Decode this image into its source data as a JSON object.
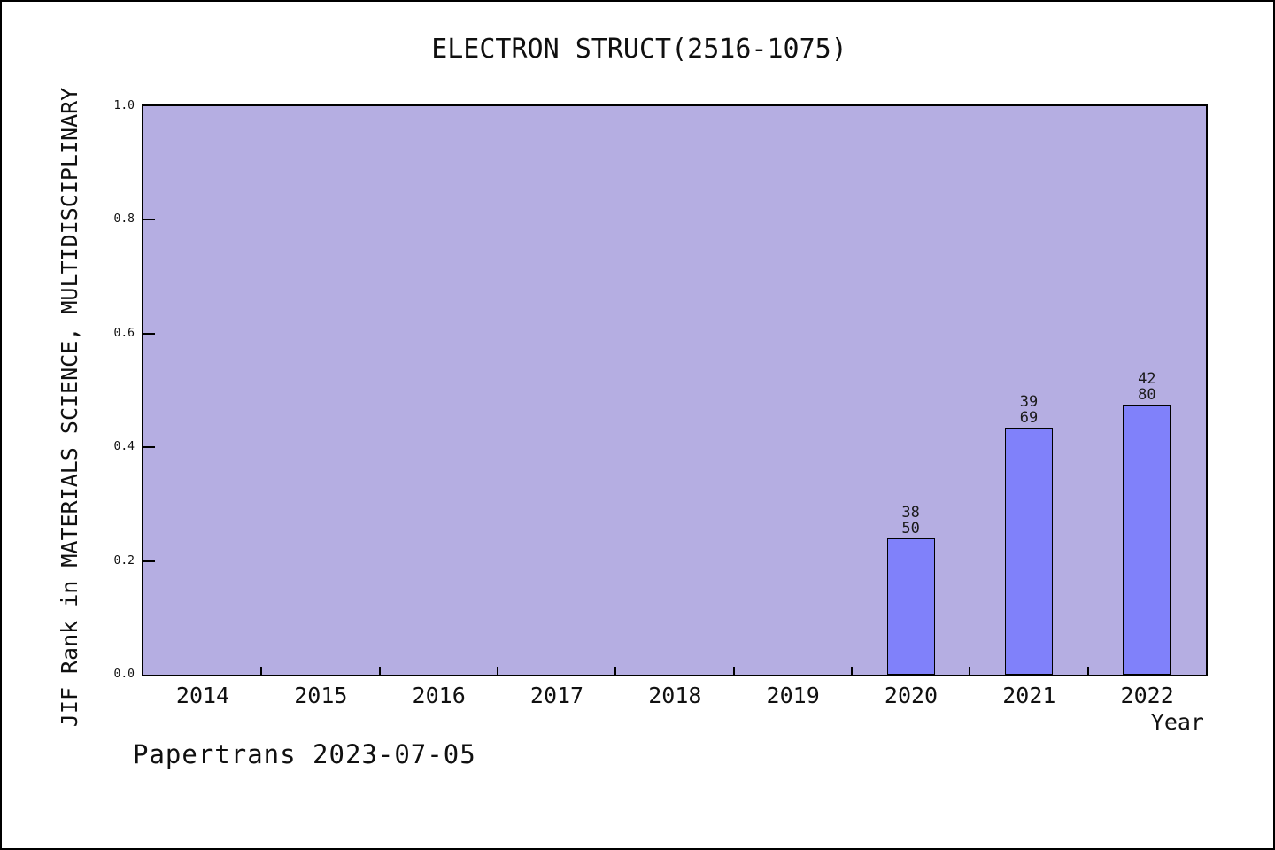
{
  "chart_data": {
    "type": "bar",
    "title": "ELECTRON STRUCT(2516-1075)",
    "xlabel": "Year",
    "ylabel": "JIF Rank in MATERIALS SCIENCE, MULTIDISCIPLINARY",
    "categories": [
      "2014",
      "2015",
      "2016",
      "2017",
      "2018",
      "2019",
      "2020",
      "2021",
      "2022"
    ],
    "y_ticks": [
      {
        "value": 0.0,
        "label": "0.0"
      },
      {
        "value": 0.2,
        "label": "0.2"
      },
      {
        "value": 0.4,
        "label": "0.4"
      },
      {
        "value": 0.6,
        "label": "0.6"
      },
      {
        "value": 0.8,
        "label": "0.8"
      },
      {
        "value": 1.0,
        "label": "1.0"
      }
    ],
    "ylim": [
      0.0,
      1.0
    ],
    "grid": "off",
    "legend": "none",
    "bars": [
      {
        "category": "2020",
        "value": 0.24,
        "label_lines": [
          "38",
          "50"
        ]
      },
      {
        "category": "2021",
        "value": 0.435,
        "label_lines": [
          "39",
          "69"
        ]
      },
      {
        "category": "2022",
        "value": 0.475,
        "label_lines": [
          "42",
          "80"
        ]
      }
    ],
    "colors": {
      "bar_fill": "#8081fa",
      "bar_border": "#000000",
      "plot_background": "#b5aee2",
      "axis": "#000000",
      "page_background": "#ffffff"
    }
  },
  "footer": {
    "text": "Papertrans 2023-07-05"
  }
}
